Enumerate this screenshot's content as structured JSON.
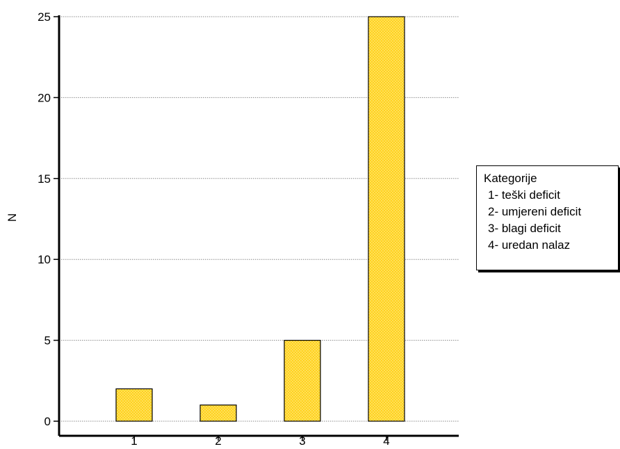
{
  "chart_data": {
    "type": "bar",
    "categories": [
      "1",
      "2",
      "3",
      "4"
    ],
    "values": [
      2,
      1,
      5,
      25
    ],
    "title": "",
    "xlabel": "",
    "ylabel": "N",
    "ylim": [
      0,
      25
    ],
    "yticks": [
      0,
      5,
      10,
      15,
      20,
      25
    ],
    "grid": "horizontal dotted",
    "legend_placement": "right",
    "bar_color": "#FFD21F",
    "bar_pattern_color": "#FFF4B0",
    "legend": {
      "title": "Kategorije",
      "entries": [
        "1- teški deficit",
        "2- umjereni deficit",
        "3- blagi deficit",
        "4- uredan nalaz"
      ]
    }
  }
}
